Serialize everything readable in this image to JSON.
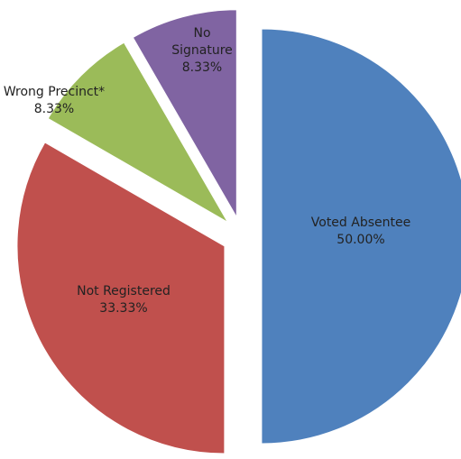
{
  "chart_data": {
    "type": "pie",
    "categories": [
      "Voted Absentee",
      "Not Registered",
      "Wrong Precinct*",
      "No Signature"
    ],
    "values": [
      50,
      33.33,
      8.33,
      8.33
    ],
    "value_labels": [
      "50.00%",
      "33.33%",
      "8.33%",
      "8.33%"
    ],
    "colors": [
      "#4f81bd",
      "#c0504d",
      "#9bbb59",
      "#8064a2"
    ]
  }
}
